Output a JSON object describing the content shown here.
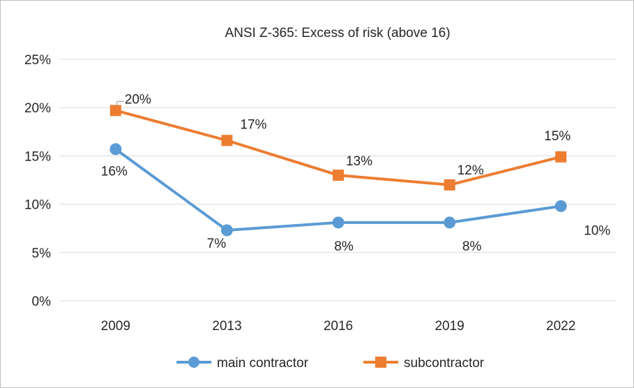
{
  "chart_data": {
    "type": "line",
    "title": "ANSI Z-365: Excess of risk (above 16)",
    "categories": [
      "2009",
      "2013",
      "2016",
      "2019",
      "2022"
    ],
    "y_ticks": [
      "0%",
      "5%",
      "10%",
      "15%",
      "20%",
      "25%"
    ],
    "ylim": [
      0,
      25
    ],
    "grid": true,
    "legend_position": "bottom",
    "series": [
      {
        "name": "main contractor",
        "values": [
          15.7,
          7.3,
          8.1,
          8.1,
          9.8
        ],
        "data_labels": [
          "16%",
          "7%",
          "8%",
          "8%",
          "10%"
        ],
        "color": "#5b9bd5",
        "marker": "circle"
      },
      {
        "name": "subcontractor",
        "values": [
          19.7,
          16.6,
          13.0,
          12.0,
          14.9
        ],
        "data_labels": [
          "20%",
          "17%",
          "13%",
          "12%",
          "15%"
        ],
        "color": "#ed7d31",
        "marker": "square"
      }
    ]
  }
}
